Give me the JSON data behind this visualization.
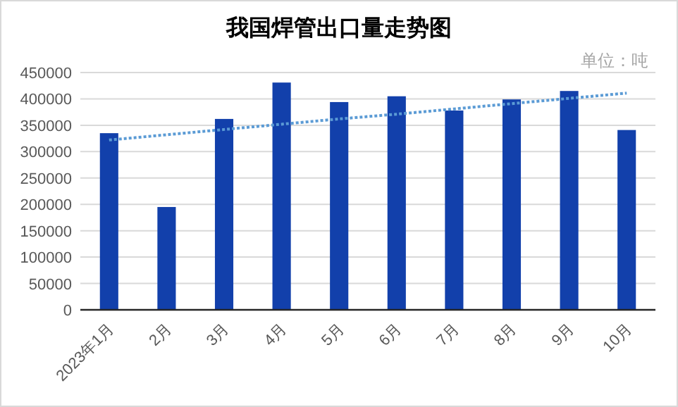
{
  "chart_data": {
    "type": "bar",
    "title": "我国焊管出口量走势图",
    "annotations": [
      "单位：吨"
    ],
    "categories": [
      "2023年1月",
      "2月",
      "3月",
      "4月",
      "5月",
      "6月",
      "7月",
      "8月",
      "9月",
      "10月"
    ],
    "series": [
      {
        "color": "#1240ab",
        "values": [
          335000,
          195000,
          362000,
          431000,
          394000,
          405000,
          378000,
          399000,
          415000,
          341000
        ]
      },
      {
        "type": "line",
        "color": "#5b9bd5",
        "line_style": "dotted",
        "values": [
          322000,
          332000,
          342000,
          352000,
          362000,
          371000,
          381000,
          391000,
          401000,
          411000
        ]
      }
    ],
    "ylim": [
      0,
      450000
    ],
    "yticks": [
      0,
      50000,
      100000,
      150000,
      200000,
      250000,
      300000,
      350000,
      400000,
      450000
    ],
    "grid": "y"
  }
}
